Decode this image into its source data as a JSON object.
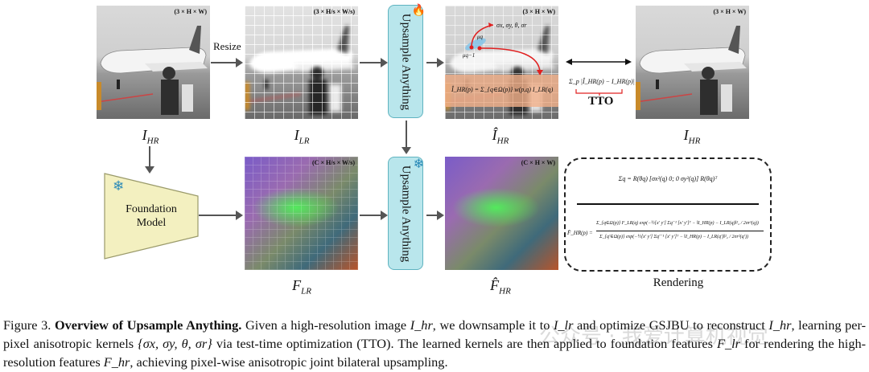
{
  "figure": {
    "panels": {
      "input_hr": {
        "label": "I",
        "sub": "HR",
        "dim": "(3 × H × W)"
      },
      "input_lr": {
        "label": "I",
        "sub": "LR",
        "dim": "(3 × H/s × W/s)"
      },
      "output_hr": {
        "label": "Î",
        "sub": "HR",
        "dim": "(3 × H × W)"
      },
      "target_hr": {
        "label": "I",
        "sub": "HR",
        "dim": "(3 × H × W)"
      },
      "feat_lr": {
        "label": "F",
        "sub": "LR",
        "dim": "(C × H/s × W/s)"
      },
      "feat_hr": {
        "label": "F̂",
        "sub": "HR",
        "dim": "(C × H × W)"
      }
    },
    "resize_label": "Resize",
    "upsample_top": "Upsample Anything",
    "upsample_bottom": "Upsample Anything",
    "foundation_model": "Foundation Model",
    "kernel_params": "σx, σy, θ, σr",
    "mu_q": "μq",
    "mu_q1": "μq−1",
    "reconstruction_eq": "Î_HR(p) = Σ_{q∈Ω(p)} w(p,q) I_LR(q)",
    "loss_eq": "Σ_p |Î_HR(p) − I_HR(p)|₁",
    "tto_label": "TTO",
    "cov_eq": "Σq = R(θq) [σx²(q) 0; 0 σy²(q)] R(θq)ᵀ",
    "render_eq_lhs": "F̂_HR(p) =",
    "render_eq_num": "Σ_{q∈Ω(p)} F_LR(q) exp(−½[x′ y′] Σq⁻¹ [x′ y′]ᵀ − ‖I_HR(p) − I_LR(q)‖²₂ / 2σr²(q))",
    "render_eq_den": "Σ_{q′∈Ω(p)} exp(−½[x′ y′] Σq′⁻¹ [x′ y′]ᵀ − ‖I_HR(p) − I_LR(q′)‖²₂ / 2σr²(q′))",
    "rendering_label": "Rendering",
    "icons": {
      "trainable": "fire-icon",
      "frozen": "snowflake-icon"
    }
  },
  "caption": {
    "prefix": "Figure 3.",
    "title": "Overview of Upsample Anything.",
    "t1": " Given a high-resolution image ",
    "m1": "I_hr",
    "t2": ", we downsample it to ",
    "m2": "I_lr",
    "t3": " and optimize GSJBU to reconstruct ",
    "m3": "I_hr",
    "t4": ", learning per-pixel anisotropic kernels ",
    "m4": "{σx, σy, θ, σr}",
    "t5": " via test-time optimization (TTO). The learned kernels are then applied to foundation features ",
    "m5": "F_lr",
    "t6": " for rendering the high-resolution features ",
    "m6": "F_hr",
    "t7": ", achieving pixel-wise anisotropic joint bilateral upsampling."
  },
  "watermark": "公众号 · 我爱计算机视觉",
  "colors": {
    "box_fill": "#b9e6ec",
    "box_border": "#5fb3c0",
    "arrow": "#555555",
    "accent_red": "#e02020",
    "foundation_fill": "#f3f0c0"
  }
}
